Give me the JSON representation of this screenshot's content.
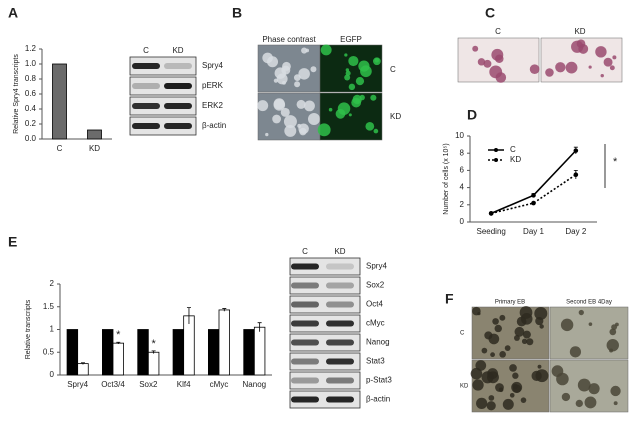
{
  "letters": [
    "A",
    "B",
    "C",
    "D",
    "E",
    "F"
  ],
  "blot_a": {
    "lanes": [
      "C",
      "KD"
    ],
    "rows": [
      {
        "label": "Spry4"
      },
      {
        "label": "pERK"
      },
      {
        "label": "ERK2"
      },
      {
        "label": "β-actin"
      }
    ]
  },
  "images_b": {
    "headers": [
      "Phase contrast",
      "EGFP"
    ],
    "rows": [
      "C",
      "KD"
    ]
  },
  "images_c": {
    "headers": [
      "C",
      "KD"
    ]
  },
  "blot_e": {
    "lanes": [
      "C",
      "KD"
    ],
    "rows": [
      {
        "label": "Spry4"
      },
      {
        "label": "Sox2",
        "color": "#d01010"
      },
      {
        "label": "Oct4",
        "color": "#d01010"
      },
      {
        "label": "cMyc"
      },
      {
        "label": "Nanog"
      },
      {
        "label": "Stat3"
      },
      {
        "label": "p-Stat3"
      },
      {
        "label": "β-actin"
      }
    ]
  },
  "images_f": {
    "headers": [
      "Primary EB",
      "Second EB 4Day"
    ],
    "rows": [
      "C",
      "KD"
    ]
  },
  "chart_data": [
    {
      "type": "bar",
      "ylabel": "Relative Spry4 transcripts",
      "categories": [
        "C",
        "KD"
      ],
      "values": [
        1.0,
        0.12
      ],
      "color": "#6b6b6b",
      "ylim": [
        0,
        1.2
      ],
      "yticks": [
        {
          "value": 0,
          "label": "0.0"
        },
        {
          "value": 0.2,
          "label": "0.2"
        },
        {
          "value": 0.4,
          "label": "0.4"
        },
        {
          "value": 0.6,
          "label": "0.6"
        },
        {
          "value": 0.8,
          "label": "0.8"
        },
        {
          "value": 1.0,
          "label": "1.0"
        },
        {
          "value": 1.2,
          "label": "1.2"
        }
      ]
    },
    {
      "type": "line",
      "ylabel": "Number of cells (x 10⁵)",
      "categories": [
        "Seeding",
        "Day 1",
        "Day 2"
      ],
      "series": [
        {
          "name": "C",
          "color": "#000000",
          "dash": false,
          "values": [
            1.0,
            3.1,
            8.3
          ],
          "errors": [
            0.1,
            0.2,
            0.4
          ]
        },
        {
          "name": "KD",
          "color": "#000000",
          "dash": true,
          "values": [
            1.0,
            2.2,
            5.5
          ],
          "errors": [
            0.1,
            0.1,
            0.5
          ]
        }
      ],
      "ylim": [
        0,
        10
      ],
      "yticks": [
        0,
        2,
        4,
        6,
        8,
        10
      ],
      "annotation": "*"
    },
    {
      "type": "bar",
      "ylabel": "Relative transcripts",
      "categories": [
        "Spry4",
        "Oct3/4",
        "Sox2",
        "Klf4",
        "cMyc",
        "Nanog"
      ],
      "series": [
        {
          "color": "#000000",
          "values": [
            1,
            1,
            1,
            1,
            1,
            1
          ]
        },
        {
          "color": "#ffffff",
          "values": [
            0.25,
            0.7,
            0.5,
            1.3,
            1.43,
            1.05
          ],
          "errors": [
            0.02,
            0.02,
            0.03,
            0.18,
            0.03,
            0.1
          ]
        }
      ],
      "ylim": [
        0,
        2
      ],
      "yticks": [
        0,
        0.5,
        1,
        1.5,
        2
      ],
      "annotations": [
        {
          "text": "*",
          "category": 1
        },
        {
          "text": "*",
          "category": 2
        }
      ]
    }
  ]
}
